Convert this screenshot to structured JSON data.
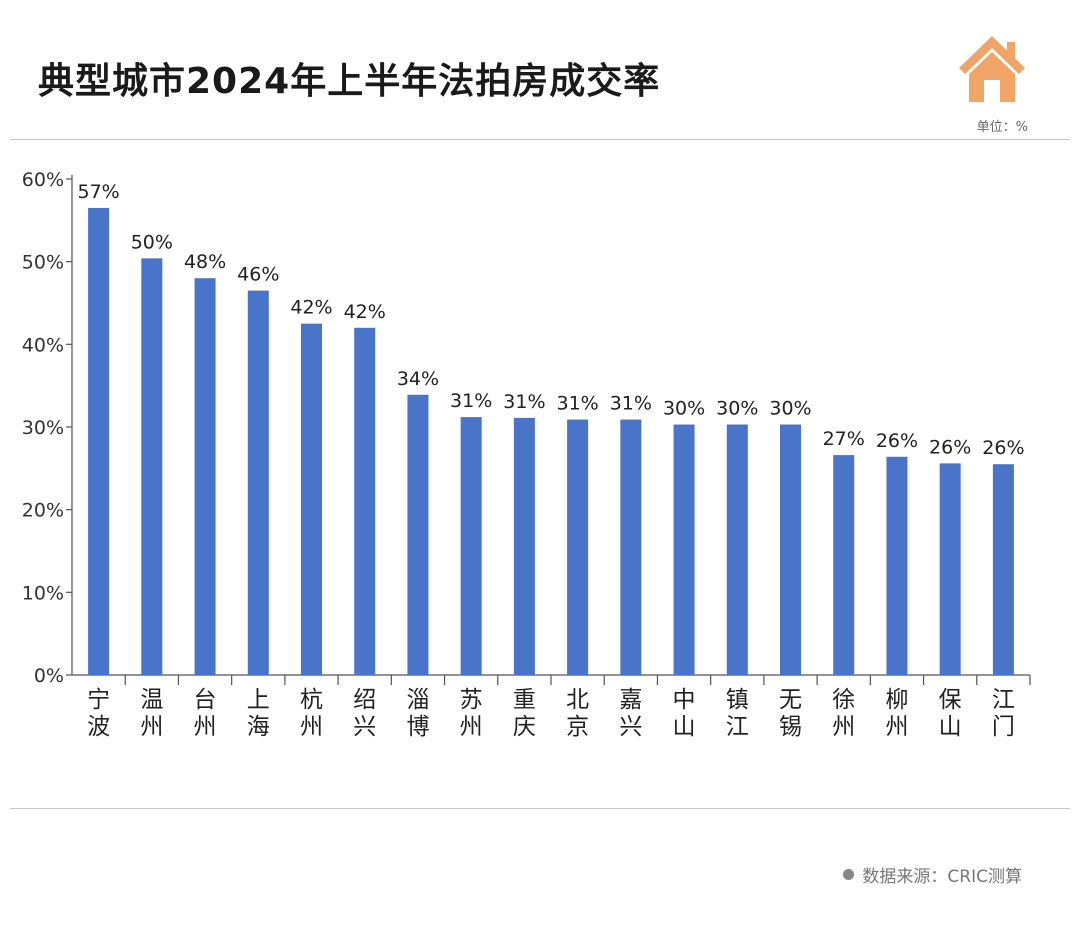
{
  "title": "典型城市2024年上半年法拍房成交率",
  "unit_label": "单位：%",
  "source_label": "数据来源：CRIC测算",
  "colors": {
    "bar": "#4A74C9",
    "house": "#F0A466"
  },
  "icons": {
    "logo": "house-icon",
    "source": "dot-icon"
  },
  "chart_data": {
    "type": "bar",
    "title": "典型城市2024年上半年法拍房成交率",
    "xlabel": "",
    "ylabel": "",
    "ylim": [
      0,
      60
    ],
    "yticks": [
      0,
      10,
      20,
      30,
      40,
      50,
      60
    ],
    "ytick_labels": [
      "0%",
      "10%",
      "20%",
      "30%",
      "40%",
      "50%",
      "60%"
    ],
    "categories": [
      "宁波",
      "温州",
      "台州",
      "上海",
      "杭州",
      "绍兴",
      "淄博",
      "苏州",
      "重庆",
      "北京",
      "嘉兴",
      "中山",
      "镇江",
      "无锡",
      "徐州",
      "柳州",
      "保山",
      "江门"
    ],
    "values": [
      56.5,
      50.4,
      48.0,
      46.5,
      42.5,
      42.0,
      33.9,
      31.2,
      31.1,
      30.9,
      30.9,
      30.3,
      30.3,
      30.3,
      26.6,
      26.4,
      25.6,
      25.5
    ],
    "data_labels": [
      "57%",
      "50%",
      "48%",
      "46%",
      "42%",
      "42%",
      "34%",
      "31%",
      "31%",
      "31%",
      "31%",
      "30%",
      "30%",
      "30%",
      "27%",
      "26%",
      "26%",
      "26%"
    ]
  }
}
